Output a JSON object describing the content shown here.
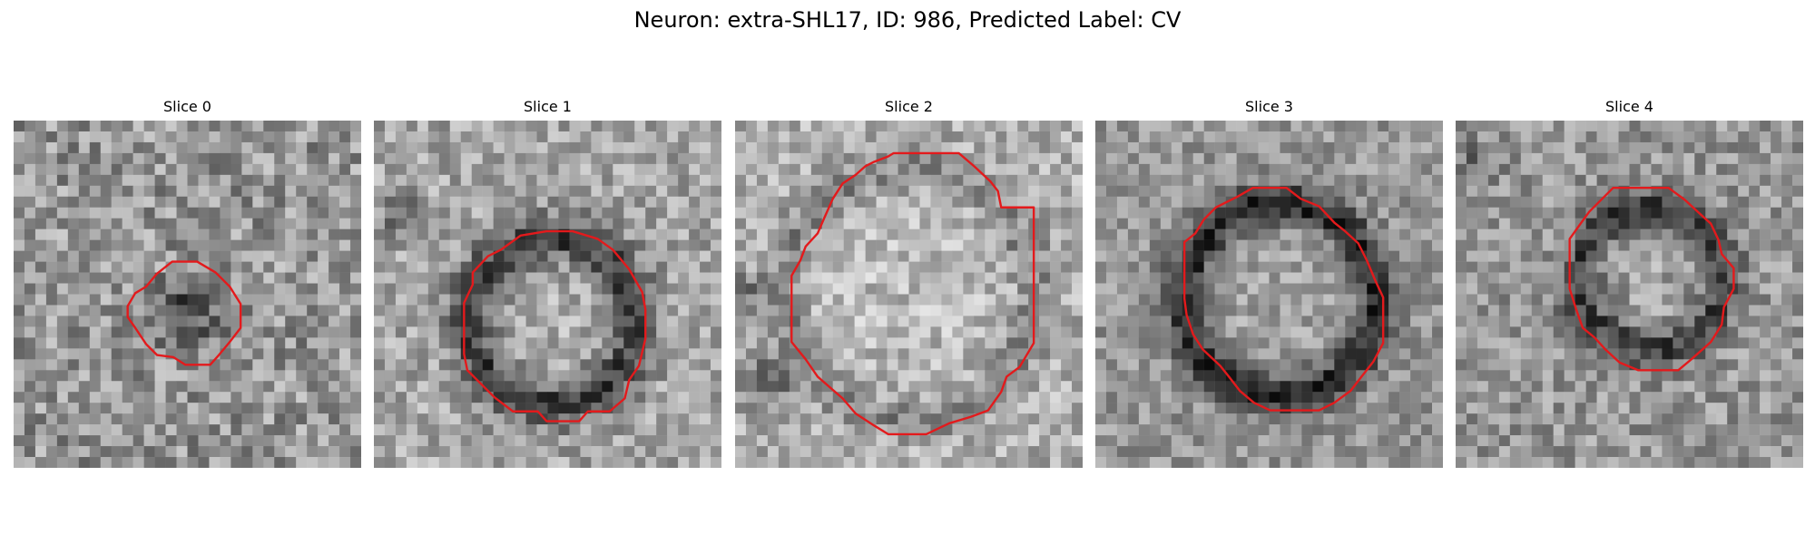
{
  "figure": {
    "title": "Neuron: extra-SHL17, ID: 986, Predicted Label: CV"
  },
  "panels": [
    {
      "title": "Slice 0"
    },
    {
      "title": "Slice 1"
    },
    {
      "title": "Slice 2"
    },
    {
      "title": "Slice 3"
    },
    {
      "title": "Slice 4"
    }
  ],
  "colors": {
    "contour": "#e31a1c",
    "background": "#ffffff"
  }
}
